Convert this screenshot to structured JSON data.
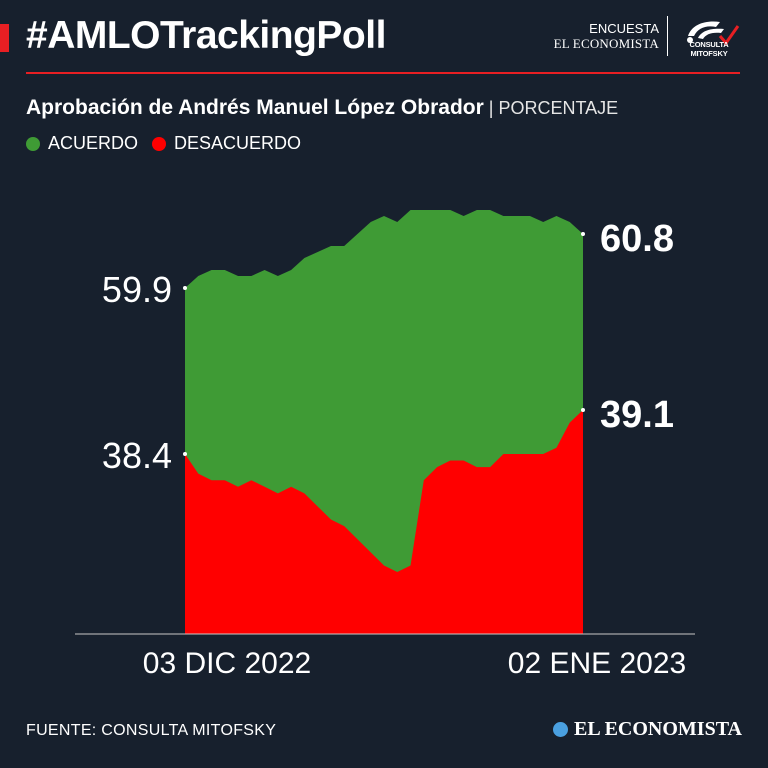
{
  "header": {
    "hashtag": "#AMLOTrackingPoll",
    "brand_line1": "ENCUESTA",
    "brand_line2": "EL ECONOMISTA",
    "brand_logo_text": "CONSULTA MITOFSKY",
    "accent_color": "#e81f23"
  },
  "subtitle": {
    "main": "Aprobación de Andrés Manuel López Obrador",
    "separator": " | ",
    "unit": "PORCENTAJE"
  },
  "legend": [
    {
      "label": "ACUERDO",
      "color": "#3f9b35"
    },
    {
      "label": "DESACUERDO",
      "color": "#ff0000"
    }
  ],
  "chart_data": {
    "type": "area",
    "title": "Aprobación de Andrés Manuel López Obrador",
    "unit": "PORCENTAJE",
    "x_start_label": "03 DIC 2022",
    "x_end_label": "02 ENE 2023",
    "x": [
      "2022-12-03",
      "2022-12-04",
      "2022-12-05",
      "2022-12-06",
      "2022-12-07",
      "2022-12-08",
      "2022-12-09",
      "2022-12-10",
      "2022-12-11",
      "2022-12-12",
      "2022-12-13",
      "2022-12-14",
      "2022-12-15",
      "2022-12-16",
      "2022-12-17",
      "2022-12-18",
      "2022-12-19",
      "2022-12-20",
      "2022-12-21",
      "2022-12-22",
      "2022-12-23",
      "2022-12-24",
      "2022-12-25",
      "2022-12-26",
      "2022-12-27",
      "2022-12-28",
      "2022-12-29",
      "2022-12-30",
      "2022-12-31",
      "2023-01-01",
      "2023-01-02"
    ],
    "series": [
      {
        "name": "ACUERDO",
        "color": "#3f9b35",
        "start_label": "59.9",
        "end_label": "60.8",
        "values": [
          59.9,
          60.1,
          60.2,
          60.2,
          60.1,
          60.1,
          60.2,
          60.1,
          60.2,
          60.4,
          60.5,
          60.6,
          60.6,
          60.8,
          61.0,
          61.1,
          61.0,
          61.2,
          61.2,
          61.2,
          61.2,
          61.1,
          61.2,
          61.2,
          61.1,
          61.1,
          61.1,
          61.0,
          61.1,
          61.0,
          60.8
        ]
      },
      {
        "name": "DESACUERDO",
        "color": "#ff0000",
        "start_label": "38.4",
        "end_label": "39.1",
        "values": [
          38.4,
          38.1,
          38.0,
          38.0,
          37.9,
          38.0,
          37.9,
          37.8,
          37.9,
          37.8,
          37.6,
          37.4,
          37.3,
          37.1,
          36.9,
          36.7,
          36.6,
          36.7,
          38.0,
          38.2,
          38.3,
          38.3,
          38.2,
          38.2,
          38.4,
          38.4,
          38.4,
          38.4,
          38.5,
          38.9,
          39.1
        ]
      }
    ],
    "grid": false,
    "legend_position": "top-left"
  },
  "footer": {
    "source": "FUENTE: CONSULTA MITOFSKY",
    "brand": "EL ECONOMISTA"
  }
}
